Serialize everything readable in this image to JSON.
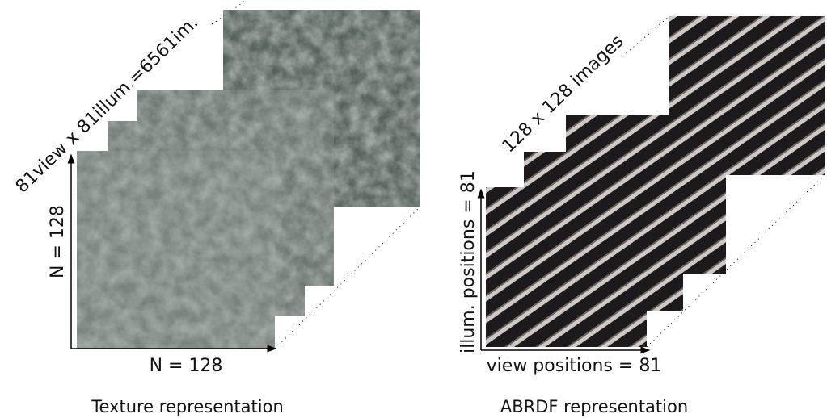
{
  "left": {
    "diagonal_label": "81view x 81illum.=6561im.",
    "y_label": "N = 128",
    "x_label": "N = 128",
    "caption": "Texture representation"
  },
  "right": {
    "diagonal_label": "128 x 128 images",
    "y_label": "illum. positions = 81",
    "x_label": "view positions = 81",
    "caption": "ABRDF representation"
  }
}
